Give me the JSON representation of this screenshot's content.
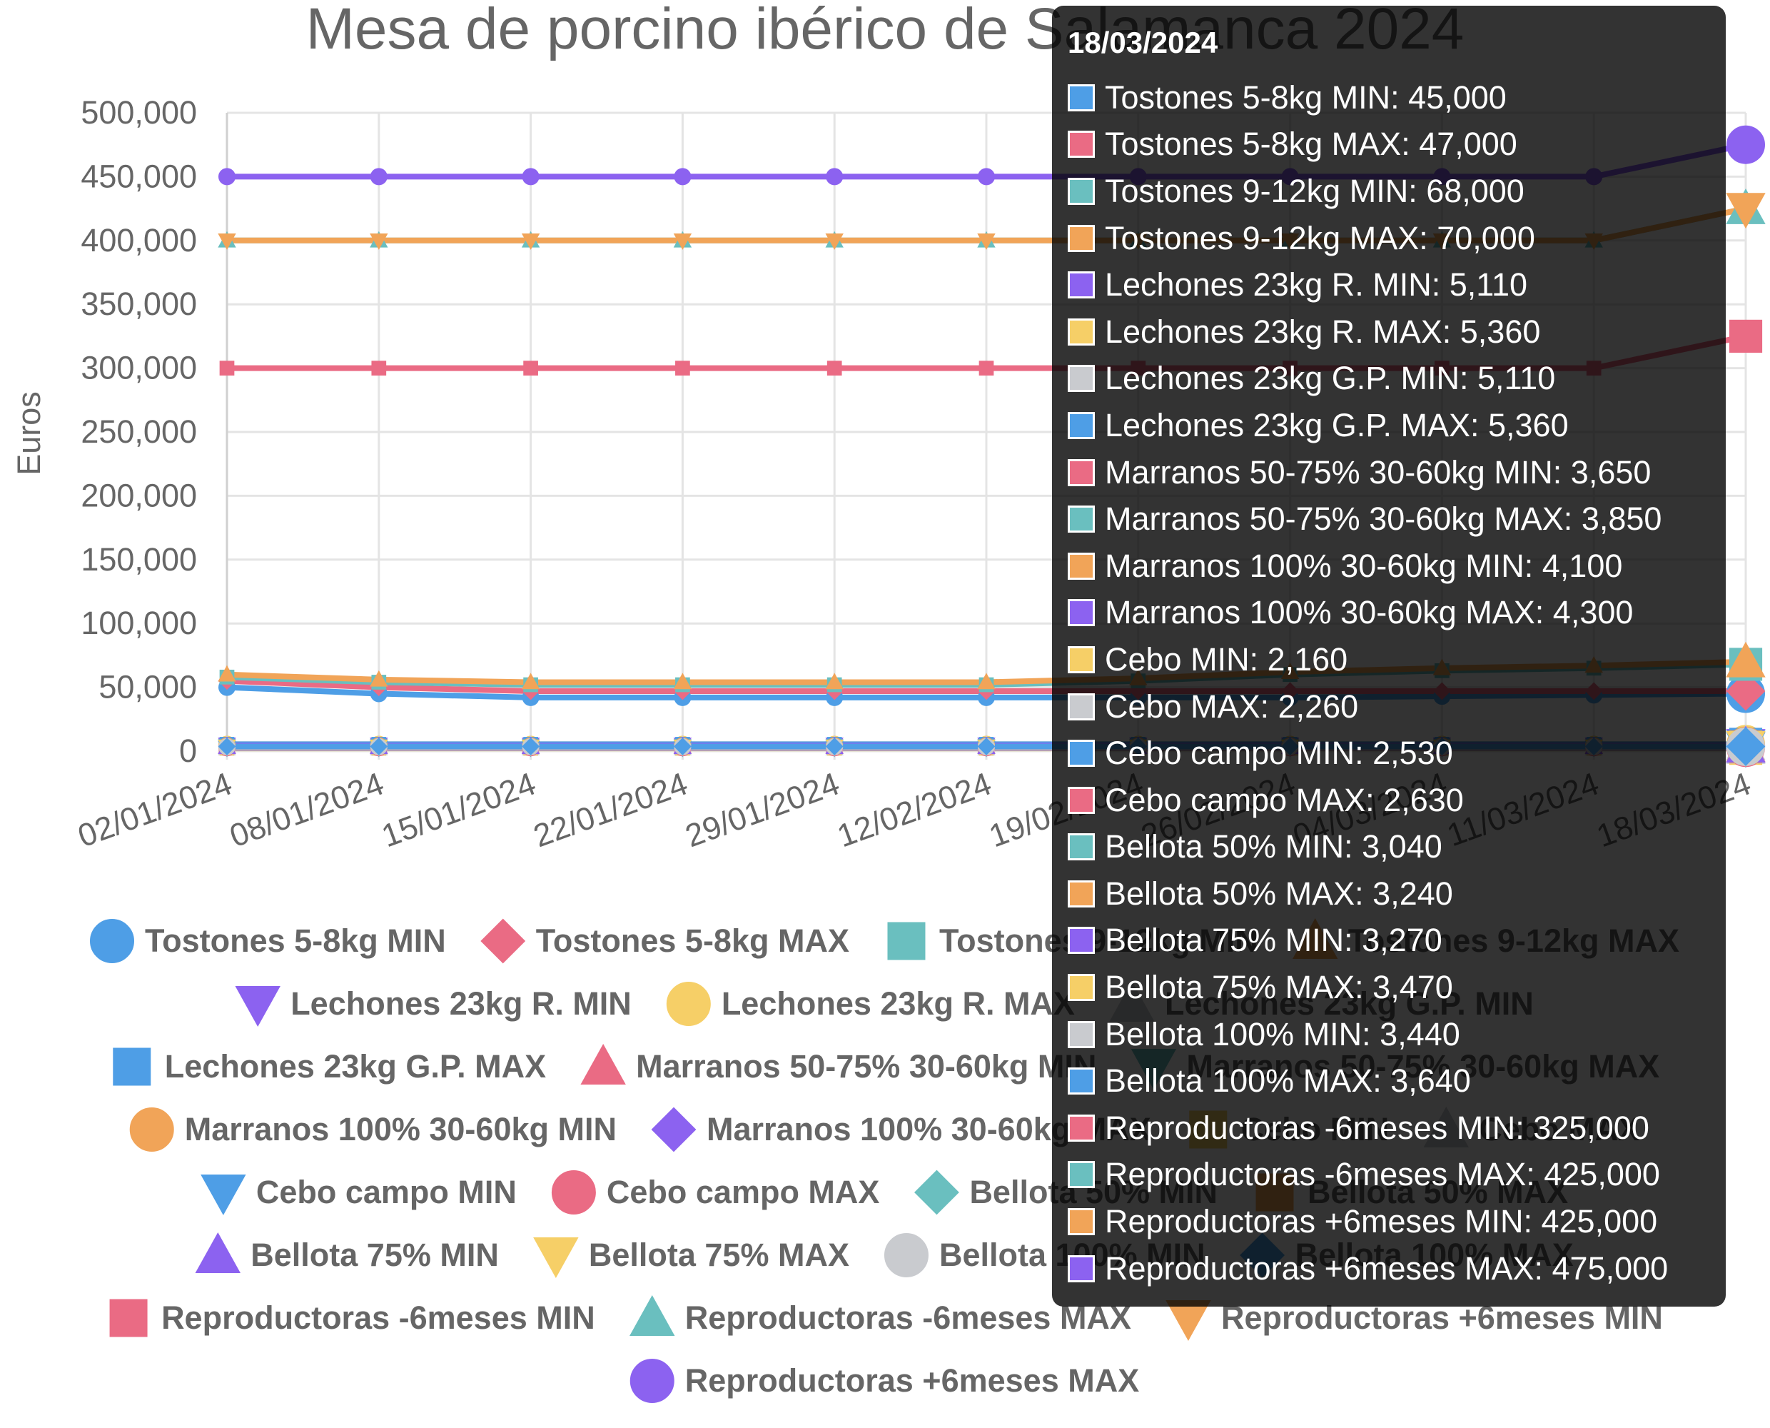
{
  "chart_data": {
    "type": "line",
    "title": "Mesa de porcino ibérico de Salamanca 2024",
    "ylabel": "Euros",
    "xlabel": "",
    "ylim": [
      0,
      500000
    ],
    "y_ticks": [
      "0",
      "50,000",
      "100,000",
      "150,000",
      "200,000",
      "250,000",
      "300,000",
      "350,000",
      "400,000",
      "450,000",
      "500,000"
    ],
    "categories": [
      "02/01/2024",
      "08/01/2024",
      "15/01/2024",
      "22/01/2024",
      "29/01/2024",
      "12/02/2024",
      "19/02/2024",
      "26/02/2024",
      "04/03/2024",
      "11/03/2024",
      "18/03/2024"
    ],
    "grid": true,
    "legend_position": "bottom",
    "series": [
      {
        "name": "Tostones 5-8kg MIN",
        "color": "#4e9ee6",
        "marker": "circle",
        "values": [
          50000,
          45000,
          42000,
          42000,
          42000,
          42000,
          42000,
          42000,
          43000,
          44000,
          45000
        ]
      },
      {
        "name": "Tostones 5-8kg MAX",
        "color": "#ea6b84",
        "marker": "diamond",
        "values": [
          55000,
          50000,
          47000,
          47000,
          47000,
          47000,
          47000,
          47000,
          47000,
          47000,
          47000
        ]
      },
      {
        "name": "Tostones 9-12kg MIN",
        "color": "#6abfbf",
        "marker": "square",
        "values": [
          58000,
          54000,
          52000,
          52000,
          52000,
          52000,
          55000,
          60000,
          63000,
          65000,
          68000
        ]
      },
      {
        "name": "Tostones 9-12kg MAX",
        "color": "#f1a458",
        "marker": "triangle",
        "values": [
          60000,
          56000,
          54000,
          54000,
          54000,
          54000,
          57000,
          62000,
          65000,
          67000,
          70000
        ]
      },
      {
        "name": "Lechones 23kg R. MIN",
        "color": "#8c62f0",
        "marker": "triangle-down",
        "values": [
          5110,
          5110,
          5110,
          5110,
          5110,
          5110,
          5110,
          5110,
          5110,
          5110,
          5110
        ]
      },
      {
        "name": "Lechones 23kg R. MAX",
        "color": "#f6cf67",
        "marker": "circle",
        "values": [
          5360,
          5360,
          5360,
          5360,
          5360,
          5360,
          5360,
          5360,
          5360,
          5360,
          5360
        ]
      },
      {
        "name": "Lechones 23kg G.P. MIN",
        "color": "#c9cbcf",
        "marker": "triangle",
        "values": [
          5110,
          5110,
          5110,
          5110,
          5110,
          5110,
          5110,
          5110,
          5110,
          5110,
          5110
        ]
      },
      {
        "name": "Lechones 23kg G.P. MAX",
        "color": "#4e9ee6",
        "marker": "square",
        "values": [
          5360,
          5360,
          5360,
          5360,
          5360,
          5360,
          5360,
          5360,
          5360,
          5360,
          5360
        ]
      },
      {
        "name": "Marranos 50-75% 30-60kg MIN",
        "color": "#ea6b84",
        "marker": "triangle",
        "values": [
          3650,
          3650,
          3650,
          3650,
          3650,
          3650,
          3650,
          3650,
          3650,
          3650,
          3650
        ]
      },
      {
        "name": "Marranos 50-75% 30-60kg MAX",
        "color": "#6abfbf",
        "marker": "triangle-down",
        "values": [
          3850,
          3850,
          3850,
          3850,
          3850,
          3850,
          3850,
          3850,
          3850,
          3850,
          3850
        ]
      },
      {
        "name": "Marranos 100% 30-60kg MIN",
        "color": "#f1a458",
        "marker": "circle",
        "values": [
          4100,
          4100,
          4100,
          4100,
          4100,
          4100,
          4100,
          4100,
          4100,
          4100,
          4100
        ]
      },
      {
        "name": "Marranos 100% 30-60kg MAX",
        "color": "#8c62f0",
        "marker": "diamond",
        "values": [
          4300,
          4300,
          4300,
          4300,
          4300,
          4300,
          4300,
          4300,
          4300,
          4300,
          4300
        ]
      },
      {
        "name": "Cebo MIN",
        "color": "#f6cf67",
        "marker": "square",
        "values": [
          2160,
          2160,
          2160,
          2160,
          2160,
          2160,
          2160,
          2160,
          2160,
          2160,
          2160
        ]
      },
      {
        "name": "Cebo MAX",
        "color": "#c9cbcf",
        "marker": "triangle",
        "values": [
          2260,
          2260,
          2260,
          2260,
          2260,
          2260,
          2260,
          2260,
          2260,
          2260,
          2260
        ]
      },
      {
        "name": "Cebo campo MIN",
        "color": "#4e9ee6",
        "marker": "triangle-down",
        "values": [
          2530,
          2530,
          2530,
          2530,
          2530,
          2530,
          2530,
          2530,
          2530,
          2530,
          2530
        ]
      },
      {
        "name": "Cebo campo MAX",
        "color": "#ea6b84",
        "marker": "circle",
        "values": [
          2630,
          2630,
          2630,
          2630,
          2630,
          2630,
          2630,
          2630,
          2630,
          2630,
          2630
        ]
      },
      {
        "name": "Bellota 50% MIN",
        "color": "#6abfbf",
        "marker": "diamond",
        "values": [
          3040,
          3040,
          3040,
          3040,
          3040,
          3040,
          3040,
          3040,
          3040,
          3040,
          3040
        ]
      },
      {
        "name": "Bellota 50% MAX",
        "color": "#f1a458",
        "marker": "square",
        "values": [
          3240,
          3240,
          3240,
          3240,
          3240,
          3240,
          3240,
          3240,
          3240,
          3240,
          3240
        ]
      },
      {
        "name": "Bellota 75% MIN",
        "color": "#8c62f0",
        "marker": "triangle",
        "values": [
          3270,
          3270,
          3270,
          3270,
          3270,
          3270,
          3270,
          3270,
          3270,
          3270,
          3270
        ]
      },
      {
        "name": "Bellota 75% MAX",
        "color": "#f6cf67",
        "marker": "triangle-down",
        "values": [
          3470,
          3470,
          3470,
          3470,
          3470,
          3470,
          3470,
          3470,
          3470,
          3470,
          3470
        ]
      },
      {
        "name": "Bellota 100% MIN",
        "color": "#c9cbcf",
        "marker": "circle",
        "values": [
          3440,
          3440,
          3440,
          3440,
          3440,
          3440,
          3440,
          3440,
          3440,
          3440,
          3440
        ]
      },
      {
        "name": "Bellota 100% MAX",
        "color": "#4e9ee6",
        "marker": "diamond",
        "values": [
          3640,
          3640,
          3640,
          3640,
          3640,
          3640,
          3640,
          3640,
          3640,
          3640,
          3640
        ]
      },
      {
        "name": "Reproductoras -6meses MIN",
        "color": "#ea6b84",
        "marker": "square",
        "values": [
          300000,
          300000,
          300000,
          300000,
          300000,
          300000,
          300000,
          300000,
          300000,
          300000,
          325000
        ]
      },
      {
        "name": "Reproductoras -6meses MAX",
        "color": "#6abfbf",
        "marker": "triangle",
        "values": [
          400000,
          400000,
          400000,
          400000,
          400000,
          400000,
          400000,
          400000,
          400000,
          400000,
          425000
        ]
      },
      {
        "name": "Reproductoras +6meses MIN",
        "color": "#f1a458",
        "marker": "triangle-down",
        "values": [
          400000,
          400000,
          400000,
          400000,
          400000,
          400000,
          400000,
          400000,
          400000,
          400000,
          425000
        ]
      },
      {
        "name": "Reproductoras +6meses MAX",
        "color": "#8c62f0",
        "marker": "circle",
        "values": [
          450000,
          450000,
          450000,
          450000,
          450000,
          450000,
          450000,
          450000,
          450000,
          450000,
          475000
        ]
      }
    ]
  },
  "tooltip": {
    "title": "18/03/2024",
    "items": [
      "Tostones 5-8kg MIN: 45,000",
      "Tostones 5-8kg MAX: 47,000",
      "Tostones 9-12kg MIN: 68,000",
      "Tostones 9-12kg MAX: 70,000",
      "Lechones 23kg R. MIN: 5,110",
      "Lechones 23kg R. MAX: 5,360",
      "Lechones 23kg G.P. MIN: 5,110",
      "Lechones 23kg G.P. MAX: 5,360",
      "Marranos 50-75% 30-60kg MIN: 3,650",
      "Marranos 50-75% 30-60kg MAX: 3,850",
      "Marranos 100% 30-60kg MIN: 4,100",
      "Marranos 100% 30-60kg MAX: 4,300",
      "Cebo MIN: 2,160",
      "Cebo MAX: 2,260",
      "Cebo campo MIN: 2,530",
      "Cebo campo MAX: 2,630",
      "Bellota 50% MIN: 3,040",
      "Bellota 50% MAX: 3,240",
      "Bellota 75% MIN: 3,270",
      "Bellota 75% MAX: 3,470",
      "Bellota 100% MIN: 3,440",
      "Bellota 100% MAX: 3,640",
      "Reproductoras -6meses MIN: 325,000",
      "Reproductoras -6meses MAX: 425,000",
      "Reproductoras +6meses MIN: 425,000",
      "Reproductoras +6meses MAX: 475,000"
    ]
  }
}
